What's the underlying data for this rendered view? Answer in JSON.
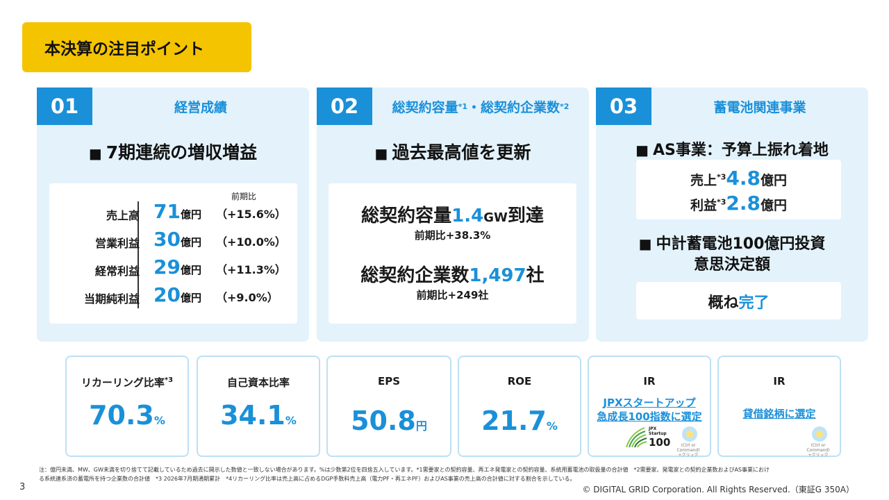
{
  "title": "本決算の注目ポイント",
  "panel1": {
    "num": "01",
    "title": "経営成績",
    "heading": "7期連続の増収増益",
    "compare_header": "前期比",
    "rows": [
      {
        "label": "売上高",
        "value": "71",
        "unit": "億円",
        "pct": "（+15.6%）"
      },
      {
        "label": "営業利益",
        "value": "30",
        "unit": "億円",
        "pct": "（+10.0%）"
      },
      {
        "label": "経常利益",
        "value": "29",
        "unit": "億円",
        "pct": "（+11.3%）"
      },
      {
        "label": "当期純利益",
        "value": "20",
        "unit": "億円",
        "pct": "（+9.0%）"
      }
    ]
  },
  "panel2": {
    "num": "02",
    "title_a": "総契約容量",
    "sup_a": "*1",
    "title_mid": "・総契約企業数",
    "sup_b": "*2",
    "heading": "過去最高値を更新",
    "cap_label": "総契約容量",
    "cap_value": "1.4",
    "cap_unit": "GW",
    "cap_suffix": "到達",
    "cap_sub": "前期比+38.3%",
    "comp_label": "総契約企業数",
    "comp_value": "1,497",
    "comp_suffix": "社",
    "comp_sub": "前期比+249社"
  },
  "panel3": {
    "num": "03",
    "title": "蓄電池関連事業",
    "heading1": "AS事業：予算上振れ着地",
    "sales_label": "売上",
    "sales_sup": "*3",
    "sales_value": "4.8",
    "sales_unit": "億円",
    "profit_label": "利益",
    "profit_sup": "*3",
    "profit_value": "2.8",
    "profit_unit": "億円",
    "heading2_line1": "中計蓄電池100億円投資",
    "heading2_line2": "意思決定額",
    "status_prefix": "概ね",
    "status_value": "完了"
  },
  "kpis": [
    {
      "label": "リカーリング比率",
      "sup": "*3",
      "value": "70.3",
      "unit": "%"
    },
    {
      "label": "自己資本比率",
      "sup": "",
      "value": "34.1",
      "unit": "%"
    },
    {
      "label": "EPS",
      "sup": "",
      "value": "50.8",
      "unit": "円"
    },
    {
      "label": "ROE",
      "sup": "",
      "value": "21.7",
      "unit": "%"
    }
  ],
  "ir1": {
    "label": "IR",
    "link_line1": "JPXスタートアップ",
    "link_line2": "急成長100指数に選定",
    "logo_text1": "JPX",
    "logo_text2": "Startup",
    "logo_text3": "100",
    "hint1": "(Ctrl or Command)",
    "hint2": "+クリック"
  },
  "ir2": {
    "label": "IR",
    "link": "貸借銘柄に選定",
    "hint1": "(Ctrl or Command)",
    "hint2": "+クリック"
  },
  "footnote_line1": "注：億円未満、MW、GW未満を切り捨てて記載しているため過去に開示した数値と一致しない場合があります。%は少数第2位を四捨五入しています。*1需要家との契約容量、再エネ発電家との契約容量、系統用蓄電池の取扱量の合計値　*2需要家、発電家との契約企業数およびAS事業におけ",
  "footnote_line2": "る系統連系済の蓄電所を持つ企業数の合計値　*3 2026年7月期通期累計　*4リカーリング比率は売上高に占めるDGP手数料売上高（電力PF・再エネPF）およびAS事業の売上高の合計値に対する割合を示している。",
  "page_number": "3",
  "copyright": "© DIGITAL GRID Corporation. All Rights Reserved.（東証G 350A）",
  "colors": {
    "accent": "#1a90d9",
    "title_bg": "#f5c400",
    "panel_bg": "#e3f2fb"
  }
}
